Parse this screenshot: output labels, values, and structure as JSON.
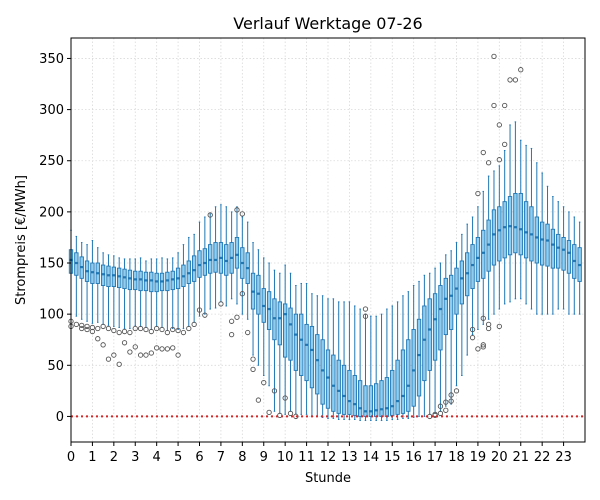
{
  "chart_data": {
    "type": "box",
    "title": "Verlauf Werktage 07-26",
    "xlabel": "Stunde",
    "ylabel": "Strompreis [€/MWh]",
    "xlim": [
      0,
      24
    ],
    "ylim": [
      -25,
      370
    ],
    "x_ticks": [
      "0",
      "1",
      "2",
      "3",
      "4",
      "5",
      "6",
      "7",
      "8",
      "9",
      "10",
      "11",
      "12",
      "13",
      "14",
      "15",
      "16",
      "17",
      "18",
      "19",
      "20",
      "21",
      "22",
      "23"
    ],
    "y_ticks": [
      "0",
      "50",
      "100",
      "150",
      "200",
      "250",
      "300",
      "350"
    ],
    "y_tick_values": [
      0,
      50,
      100,
      150,
      200,
      250,
      300,
      350
    ],
    "grid": true,
    "reference_line": {
      "y": 0,
      "style": "dotted",
      "color": "#d62728"
    },
    "box_color": "#1f77b4",
    "box_fill": "#8ecdf0",
    "boxes": [
      {
        "x": 0.0,
        "q1": 140,
        "median": 153,
        "q3": 163,
        "whislo": 100,
        "whishi": 182,
        "fliers": [
          93,
          88
        ]
      },
      {
        "x": 0.25,
        "q1": 138,
        "median": 150,
        "q3": 160,
        "whislo": 98,
        "whishi": 176,
        "fliers": [
          90
        ]
      },
      {
        "x": 0.5,
        "q1": 135,
        "median": 146,
        "q3": 156,
        "whislo": 95,
        "whishi": 170,
        "fliers": [
          89,
          86
        ]
      },
      {
        "x": 0.75,
        "q1": 132,
        "median": 142,
        "q3": 152,
        "whislo": 93,
        "whishi": 168,
        "fliers": [
          88,
          85
        ]
      },
      {
        "x": 1.0,
        "q1": 130,
        "median": 141,
        "q3": 150,
        "whislo": 91,
        "whishi": 172,
        "fliers": [
          87,
          83
        ]
      },
      {
        "x": 1.25,
        "q1": 130,
        "median": 140,
        "q3": 150,
        "whislo": 92,
        "whishi": 165,
        "fliers": [
          86,
          76
        ]
      },
      {
        "x": 1.5,
        "q1": 128,
        "median": 139,
        "q3": 148,
        "whislo": 90,
        "whishi": 160,
        "fliers": [
          88,
          70
        ]
      },
      {
        "x": 1.75,
        "q1": 127,
        "median": 138,
        "q3": 147,
        "whislo": 89,
        "whishi": 158,
        "fliers": [
          86,
          56
        ]
      },
      {
        "x": 2.0,
        "q1": 127,
        "median": 138,
        "q3": 146,
        "whislo": 88,
        "whishi": 157,
        "fliers": [
          84,
          60
        ]
      },
      {
        "x": 2.25,
        "q1": 126,
        "median": 137,
        "q3": 145,
        "whislo": 87,
        "whishi": 155,
        "fliers": [
          82,
          51
        ]
      },
      {
        "x": 2.5,
        "q1": 125,
        "median": 136,
        "q3": 144,
        "whislo": 86,
        "whishi": 154,
        "fliers": [
          83,
          72
        ]
      },
      {
        "x": 2.75,
        "q1": 124,
        "median": 135,
        "q3": 143,
        "whislo": 86,
        "whishi": 154,
        "fliers": [
          82,
          63
        ]
      },
      {
        "x": 3.0,
        "q1": 124,
        "median": 134,
        "q3": 142,
        "whislo": 89,
        "whishi": 154,
        "fliers": [
          86,
          68
        ]
      },
      {
        "x": 3.25,
        "q1": 123,
        "median": 134,
        "q3": 142,
        "whislo": 88,
        "whishi": 155,
        "fliers": [
          86,
          60
        ]
      },
      {
        "x": 3.5,
        "q1": 123,
        "median": 133,
        "q3": 141,
        "whislo": 87,
        "whishi": 152,
        "fliers": [
          85,
          60
        ]
      },
      {
        "x": 3.75,
        "q1": 122,
        "median": 133,
        "q3": 141,
        "whislo": 85,
        "whishi": 154,
        "fliers": [
          83,
          62
        ]
      },
      {
        "x": 4.0,
        "q1": 122,
        "median": 132,
        "q3": 140,
        "whislo": 88,
        "whishi": 154,
        "fliers": [
          86,
          67
        ]
      },
      {
        "x": 4.25,
        "q1": 123,
        "median": 132,
        "q3": 140,
        "whislo": 87,
        "whishi": 155,
        "fliers": [
          85,
          66
        ]
      },
      {
        "x": 4.5,
        "q1": 123,
        "median": 133,
        "q3": 141,
        "whislo": 84,
        "whishi": 154,
        "fliers": [
          82,
          66
        ]
      },
      {
        "x": 4.75,
        "q1": 124,
        "median": 134,
        "q3": 142,
        "whislo": 86,
        "whishi": 155,
        "fliers": [
          85,
          67
        ]
      },
      {
        "x": 5.0,
        "q1": 125,
        "median": 135,
        "q3": 145,
        "whislo": 85,
        "whishi": 160,
        "fliers": [
          84,
          60
        ]
      },
      {
        "x": 5.25,
        "q1": 127,
        "median": 137,
        "q3": 148,
        "whislo": 86,
        "whishi": 168,
        "fliers": [
          82
        ]
      },
      {
        "x": 5.5,
        "q1": 130,
        "median": 140,
        "q3": 152,
        "whislo": 88,
        "whishi": 175,
        "fliers": [
          86
        ]
      },
      {
        "x": 5.75,
        "q1": 132,
        "median": 143,
        "q3": 157,
        "whislo": 92,
        "whishi": 178,
        "fliers": [
          90
        ]
      },
      {
        "x": 6.0,
        "q1": 136,
        "median": 148,
        "q3": 162,
        "whislo": 98,
        "whishi": 190,
        "fliers": [
          104
        ]
      },
      {
        "x": 6.25,
        "q1": 138,
        "median": 150,
        "q3": 164,
        "whislo": 100,
        "whishi": 195,
        "fliers": [
          99
        ]
      },
      {
        "x": 6.5,
        "q1": 140,
        "median": 153,
        "q3": 168,
        "whislo": 105,
        "whishi": 198,
        "fliers": [
          197
        ]
      },
      {
        "x": 6.75,
        "q1": 141,
        "median": 153,
        "q3": 170,
        "whislo": 106,
        "whishi": 205,
        "fliers": []
      },
      {
        "x": 7.0,
        "q1": 140,
        "median": 155,
        "q3": 170,
        "whislo": 112,
        "whishi": 207,
        "fliers": [
          110
        ]
      },
      {
        "x": 7.25,
        "q1": 138,
        "median": 152,
        "q3": 168,
        "whislo": 108,
        "whishi": 205,
        "fliers": []
      },
      {
        "x": 7.5,
        "q1": 140,
        "median": 155,
        "q3": 170,
        "whislo": 115,
        "whishi": 200,
        "fliers": [
          93,
          80
        ]
      },
      {
        "x": 7.75,
        "q1": 145,
        "median": 158,
        "q3": 175,
        "whislo": 110,
        "whishi": 205,
        "fliers": [
          202,
          97
        ]
      },
      {
        "x": 8.0,
        "q1": 135,
        "median": 150,
        "q3": 165,
        "whislo": 100,
        "whishi": 195,
        "fliers": [
          198,
          120
        ]
      },
      {
        "x": 8.25,
        "q1": 130,
        "median": 145,
        "q3": 160,
        "whislo": 95,
        "whishi": 190,
        "fliers": [
          82
        ]
      },
      {
        "x": 8.5,
        "q1": 105,
        "median": 122,
        "q3": 140,
        "whislo": 60,
        "whishi": 170,
        "fliers": [
          56,
          46
        ]
      },
      {
        "x": 8.75,
        "q1": 100,
        "median": 120,
        "q3": 138,
        "whislo": 50,
        "whishi": 163,
        "fliers": [
          16
        ]
      },
      {
        "x": 9.0,
        "q1": 92,
        "median": 108,
        "q3": 125,
        "whislo": 40,
        "whishi": 155,
        "fliers": [
          33
        ]
      },
      {
        "x": 9.25,
        "q1": 85,
        "median": 105,
        "q3": 122,
        "whislo": 30,
        "whishi": 150,
        "fliers": [
          4
        ]
      },
      {
        "x": 9.5,
        "q1": 75,
        "median": 96,
        "q3": 115,
        "whislo": 5,
        "whishi": 143,
        "fliers": [
          25
        ]
      },
      {
        "x": 9.75,
        "q1": 70,
        "median": 96,
        "q3": 112,
        "whislo": 3,
        "whishi": 140,
        "fliers": [
          1
        ]
      },
      {
        "x": 10.0,
        "q1": 58,
        "median": 100,
        "q3": 110,
        "whislo": 2,
        "whishi": 148,
        "fliers": [
          18
        ]
      },
      {
        "x": 10.25,
        "q1": 55,
        "median": 90,
        "q3": 106,
        "whislo": 5,
        "whishi": 140,
        "fliers": [
          3
        ]
      },
      {
        "x": 10.5,
        "q1": 45,
        "median": 80,
        "q3": 100,
        "whislo": 3,
        "whishi": 128,
        "fliers": [
          0
        ]
      },
      {
        "x": 10.75,
        "q1": 40,
        "median": 75,
        "q3": 100,
        "whislo": 2,
        "whishi": 130,
        "fliers": []
      },
      {
        "x": 11.0,
        "q1": 35,
        "median": 70,
        "q3": 90,
        "whislo": 2,
        "whishi": 130,
        "fliers": []
      },
      {
        "x": 11.25,
        "q1": 28,
        "median": 65,
        "q3": 88,
        "whislo": 0,
        "whishi": 120,
        "fliers": []
      },
      {
        "x": 11.5,
        "q1": 22,
        "median": 55,
        "q3": 80,
        "whislo": 0,
        "whishi": 118,
        "fliers": []
      },
      {
        "x": 11.75,
        "q1": 12,
        "median": 45,
        "q3": 75,
        "whislo": -1,
        "whishi": 118,
        "fliers": []
      },
      {
        "x": 12.0,
        "q1": 8,
        "median": 38,
        "q3": 65,
        "whislo": -2,
        "whishi": 115,
        "fliers": []
      },
      {
        "x": 12.25,
        "q1": 5,
        "median": 30,
        "q3": 60,
        "whislo": -2,
        "whishi": 115,
        "fliers": []
      },
      {
        "x": 12.5,
        "q1": 3,
        "median": 25,
        "q3": 55,
        "whislo": -3,
        "whishi": 112,
        "fliers": []
      },
      {
        "x": 12.75,
        "q1": 2,
        "median": 20,
        "q3": 50,
        "whislo": -3,
        "whishi": 112,
        "fliers": []
      },
      {
        "x": 13.0,
        "q1": 2,
        "median": 15,
        "q3": 45,
        "whislo": -3,
        "whishi": 112,
        "fliers": []
      },
      {
        "x": 13.25,
        "q1": 1,
        "median": 12,
        "q3": 40,
        "whislo": -3,
        "whishi": 108,
        "fliers": []
      },
      {
        "x": 13.5,
        "q1": 0,
        "median": 8,
        "q3": 35,
        "whislo": -4,
        "whishi": 105,
        "fliers": []
      },
      {
        "x": 13.75,
        "q1": 0,
        "median": 5,
        "q3": 30,
        "whislo": -4,
        "whishi": 100,
        "fliers": [
          105,
          98
        ]
      },
      {
        "x": 14.0,
        "q1": 0,
        "median": 5,
        "q3": 30,
        "whislo": -4,
        "whishi": 98,
        "fliers": []
      },
      {
        "x": 14.25,
        "q1": 0,
        "median": 6,
        "q3": 32,
        "whislo": -4,
        "whishi": 98,
        "fliers": []
      },
      {
        "x": 14.5,
        "q1": 0,
        "median": 7,
        "q3": 35,
        "whislo": -4,
        "whishi": 100,
        "fliers": []
      },
      {
        "x": 14.75,
        "q1": 0,
        "median": 8,
        "q3": 38,
        "whislo": -4,
        "whishi": 105,
        "fliers": []
      },
      {
        "x": 15.0,
        "q1": 1,
        "median": 10,
        "q3": 45,
        "whislo": -3,
        "whishi": 108,
        "fliers": []
      },
      {
        "x": 15.25,
        "q1": 2,
        "median": 15,
        "q3": 55,
        "whislo": -3,
        "whishi": 112,
        "fliers": []
      },
      {
        "x": 15.5,
        "q1": 3,
        "median": 20,
        "q3": 65,
        "whislo": -2,
        "whishi": 118,
        "fliers": []
      },
      {
        "x": 15.75,
        "q1": 5,
        "median": 30,
        "q3": 75,
        "whislo": -2,
        "whishi": 122,
        "fliers": []
      },
      {
        "x": 16.0,
        "q1": 10,
        "median": 45,
        "q3": 85,
        "whislo": -1,
        "whishi": 128,
        "fliers": []
      },
      {
        "x": 16.25,
        "q1": 20,
        "median": 60,
        "q3": 95,
        "whislo": 0,
        "whishi": 132,
        "fliers": []
      },
      {
        "x": 16.5,
        "q1": 35,
        "median": 75,
        "q3": 108,
        "whislo": 0,
        "whishi": 138,
        "fliers": []
      },
      {
        "x": 16.75,
        "q1": 45,
        "median": 85,
        "q3": 115,
        "whislo": 2,
        "whishi": 140,
        "fliers": [
          0
        ]
      },
      {
        "x": 17.0,
        "q1": 55,
        "median": 95,
        "q3": 120,
        "whislo": 3,
        "whishi": 145,
        "fliers": [
          2,
          1
        ]
      },
      {
        "x": 17.25,
        "q1": 65,
        "median": 105,
        "q3": 128,
        "whislo": 5,
        "whishi": 150,
        "fliers": [
          10,
          3
        ]
      },
      {
        "x": 17.5,
        "q1": 80,
        "median": 115,
        "q3": 135,
        "whislo": 10,
        "whishi": 158,
        "fliers": [
          14,
          6
        ]
      },
      {
        "x": 17.75,
        "q1": 85,
        "median": 118,
        "q3": 138,
        "whislo": 12,
        "whishi": 162,
        "fliers": [
          21,
          15
        ]
      },
      {
        "x": 18.0,
        "q1": 100,
        "median": 125,
        "q3": 145,
        "whislo": 30,
        "whishi": 170,
        "fliers": [
          25
        ]
      },
      {
        "x": 18.25,
        "q1": 110,
        "median": 135,
        "q3": 152,
        "whislo": 40,
        "whishi": 178,
        "fliers": []
      },
      {
        "x": 18.5,
        "q1": 118,
        "median": 140,
        "q3": 160,
        "whislo": 60,
        "whishi": 188,
        "fliers": []
      },
      {
        "x": 18.75,
        "q1": 125,
        "median": 148,
        "q3": 168,
        "whislo": 80,
        "whishi": 195,
        "fliers": [
          85,
          77
        ]
      },
      {
        "x": 19.0,
        "q1": 132,
        "median": 155,
        "q3": 175,
        "whislo": 85,
        "whishi": 205,
        "fliers": [
          218,
          66
        ]
      },
      {
        "x": 19.25,
        "q1": 135,
        "median": 160,
        "q3": 182,
        "whislo": 90,
        "whishi": 220,
        "fliers": [
          258,
          96,
          70,
          68
        ]
      },
      {
        "x": 19.5,
        "q1": 142,
        "median": 168,
        "q3": 192,
        "whislo": 95,
        "whishi": 235,
        "fliers": [
          248,
          90,
          86
        ]
      },
      {
        "x": 19.75,
        "q1": 148,
        "median": 178,
        "q3": 202,
        "whislo": 100,
        "whishi": 240,
        "fliers": [
          352,
          304
        ]
      },
      {
        "x": 20.0,
        "q1": 152,
        "median": 182,
        "q3": 205,
        "whislo": 105,
        "whishi": 245,
        "fliers": [
          285,
          251,
          88
        ]
      },
      {
        "x": 20.25,
        "q1": 155,
        "median": 185,
        "q3": 210,
        "whislo": 110,
        "whishi": 260,
        "fliers": [
          304,
          266
        ]
      },
      {
        "x": 20.5,
        "q1": 158,
        "median": 186,
        "q3": 215,
        "whislo": 112,
        "whishi": 285,
        "fliers": [
          329
        ]
      },
      {
        "x": 20.75,
        "q1": 160,
        "median": 185,
        "q3": 218,
        "whislo": 115,
        "whishi": 288,
        "fliers": [
          329
        ]
      },
      {
        "x": 21.0,
        "q1": 158,
        "median": 183,
        "q3": 218,
        "whislo": 115,
        "whishi": 270,
        "fliers": [
          339
        ]
      },
      {
        "x": 21.25,
        "q1": 155,
        "median": 180,
        "q3": 210,
        "whislo": 110,
        "whishi": 265,
        "fliers": []
      },
      {
        "x": 21.5,
        "q1": 152,
        "median": 178,
        "q3": 205,
        "whislo": 105,
        "whishi": 262,
        "fliers": []
      },
      {
        "x": 21.75,
        "q1": 150,
        "median": 175,
        "q3": 195,
        "whislo": 100,
        "whishi": 248,
        "fliers": []
      },
      {
        "x": 22.0,
        "q1": 148,
        "median": 173,
        "q3": 190,
        "whislo": 100,
        "whishi": 238,
        "fliers": []
      },
      {
        "x": 22.25,
        "q1": 147,
        "median": 172,
        "q3": 188,
        "whislo": 100,
        "whishi": 225,
        "fliers": []
      },
      {
        "x": 22.5,
        "q1": 145,
        "median": 168,
        "q3": 183,
        "whislo": 100,
        "whishi": 215,
        "fliers": []
      },
      {
        "x": 22.75,
        "q1": 145,
        "median": 165,
        "q3": 178,
        "whislo": 105,
        "whishi": 210,
        "fliers": []
      },
      {
        "x": 23.0,
        "q1": 143,
        "median": 163,
        "q3": 175,
        "whislo": 105,
        "whishi": 205,
        "fliers": []
      },
      {
        "x": 23.25,
        "q1": 140,
        "median": 160,
        "q3": 172,
        "whislo": 100,
        "whishi": 200,
        "fliers": []
      },
      {
        "x": 23.5,
        "q1": 135,
        "median": 152,
        "q3": 168,
        "whislo": 100,
        "whishi": 195,
        "fliers": []
      },
      {
        "x": 23.75,
        "q1": 132,
        "median": 148,
        "q3": 165,
        "whislo": 100,
        "whishi": 190,
        "fliers": []
      }
    ]
  }
}
